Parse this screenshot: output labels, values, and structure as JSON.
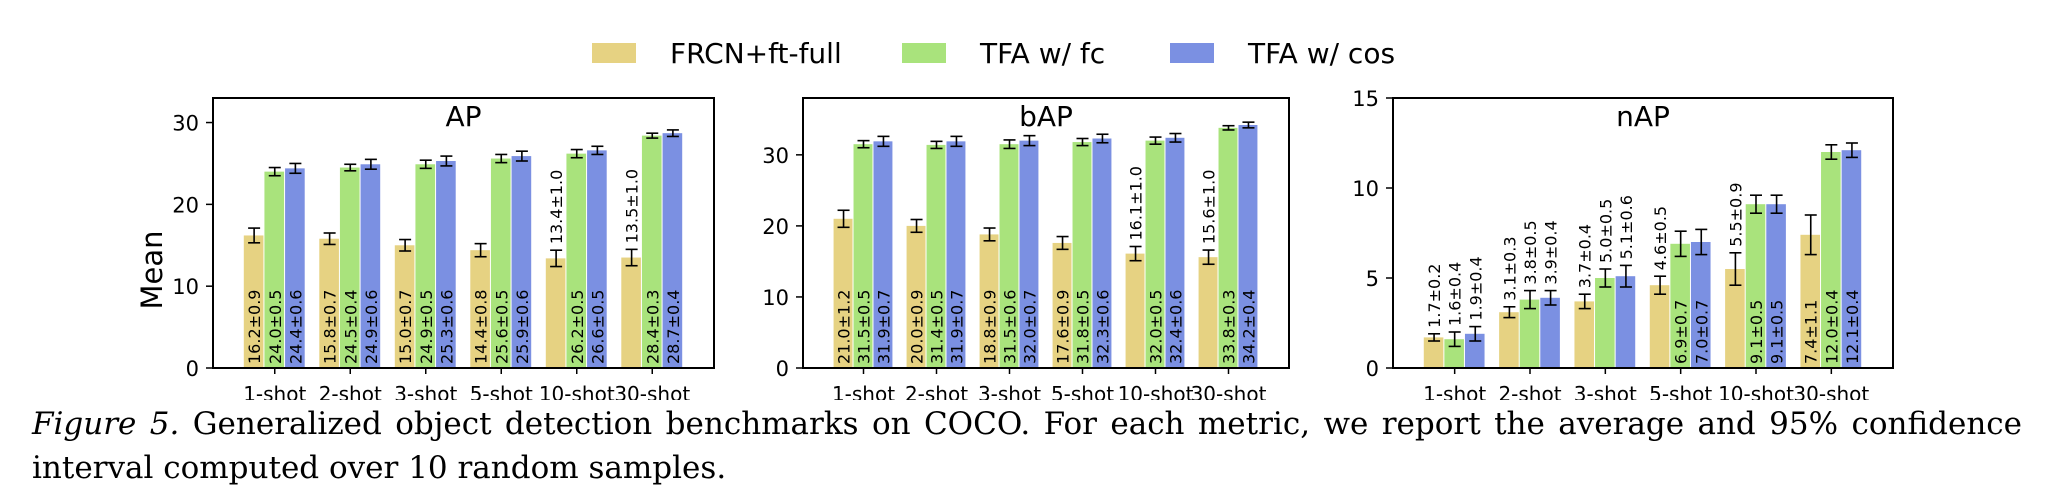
{
  "legend": {
    "items": [
      {
        "label": "FRCN+ft-full",
        "color": "#e6d282"
      },
      {
        "label": "TFA w/ fc",
        "color": "#a9e37c"
      },
      {
        "label": "TFA w/ cos",
        "color": "#7b90e2"
      }
    ]
  },
  "caption": {
    "label": "Figure 5.",
    "text": " Generalized object detection benchmarks on COCO. For each metric, we report the average and 95% confidence interval computed over 10 random samples."
  },
  "chart_data": [
    {
      "type": "bar",
      "title": "AP",
      "ylabel": "Mean",
      "xlabel": "",
      "categories": [
        "1-shot",
        "2-shot",
        "3-shot",
        "5-shot",
        "10-shot",
        "30-shot"
      ],
      "ylim": [
        0,
        33
      ],
      "yticks": [
        0,
        10,
        20,
        30
      ],
      "series": [
        {
          "name": "FRCN+ft-full",
          "values": [
            16.2,
            15.8,
            15.0,
            14.4,
            13.4,
            13.5
          ],
          "ci": [
            0.9,
            0.7,
            0.7,
            0.8,
            1.0,
            1.0
          ]
        },
        {
          "name": "TFA w/ fc",
          "values": [
            24.0,
            24.5,
            24.9,
            25.6,
            26.2,
            28.4
          ],
          "ci": [
            0.5,
            0.4,
            0.5,
            0.5,
            0.5,
            0.3
          ]
        },
        {
          "name": "TFA w/ cos",
          "values": [
            24.4,
            24.9,
            25.3,
            25.9,
            26.6,
            28.7
          ],
          "ci": [
            0.6,
            0.6,
            0.6,
            0.6,
            0.5,
            0.4
          ]
        }
      ]
    },
    {
      "type": "bar",
      "title": "bAP",
      "ylabel": "",
      "xlabel": "",
      "categories": [
        "1-shot",
        "2-shot",
        "3-shot",
        "5-shot",
        "10-shot",
        "30-shot"
      ],
      "ylim": [
        0,
        38
      ],
      "yticks": [
        0,
        10,
        20,
        30
      ],
      "series": [
        {
          "name": "FRCN+ft-full",
          "values": [
            21.0,
            20.0,
            18.8,
            17.6,
            16.1,
            15.6
          ],
          "ci": [
            1.2,
            0.9,
            0.9,
            0.9,
            1.0,
            1.0
          ]
        },
        {
          "name": "TFA w/ fc",
          "values": [
            31.5,
            31.4,
            31.5,
            31.8,
            32.0,
            33.8
          ],
          "ci": [
            0.5,
            0.5,
            0.6,
            0.5,
            0.5,
            0.3
          ]
        },
        {
          "name": "TFA w/ cos",
          "values": [
            31.9,
            31.9,
            32.0,
            32.3,
            32.4,
            34.2
          ],
          "ci": [
            0.7,
            0.7,
            0.7,
            0.6,
            0.6,
            0.4
          ]
        }
      ]
    },
    {
      "type": "bar",
      "title": "nAP",
      "ylabel": "",
      "xlabel": "",
      "categories": [
        "1-shot",
        "2-shot",
        "3-shot",
        "5-shot",
        "10-shot",
        "30-shot"
      ],
      "ylim": [
        0,
        15
      ],
      "yticks": [
        0,
        5,
        10,
        15
      ],
      "series": [
        {
          "name": "FRCN+ft-full",
          "values": [
            1.7,
            3.1,
            3.7,
            4.6,
            5.5,
            7.4
          ],
          "ci": [
            0.2,
            0.3,
            0.4,
            0.5,
            0.9,
            1.1
          ]
        },
        {
          "name": "TFA w/ fc",
          "values": [
            1.6,
            3.8,
            5.0,
            6.9,
            9.1,
            12.0
          ],
          "ci": [
            0.4,
            0.5,
            0.5,
            0.7,
            0.5,
            0.4
          ]
        },
        {
          "name": "TFA w/ cos",
          "values": [
            1.9,
            3.9,
            5.1,
            7.0,
            9.1,
            12.1
          ],
          "ci": [
            0.4,
            0.4,
            0.6,
            0.7,
            0.5,
            0.4
          ]
        }
      ]
    }
  ]
}
